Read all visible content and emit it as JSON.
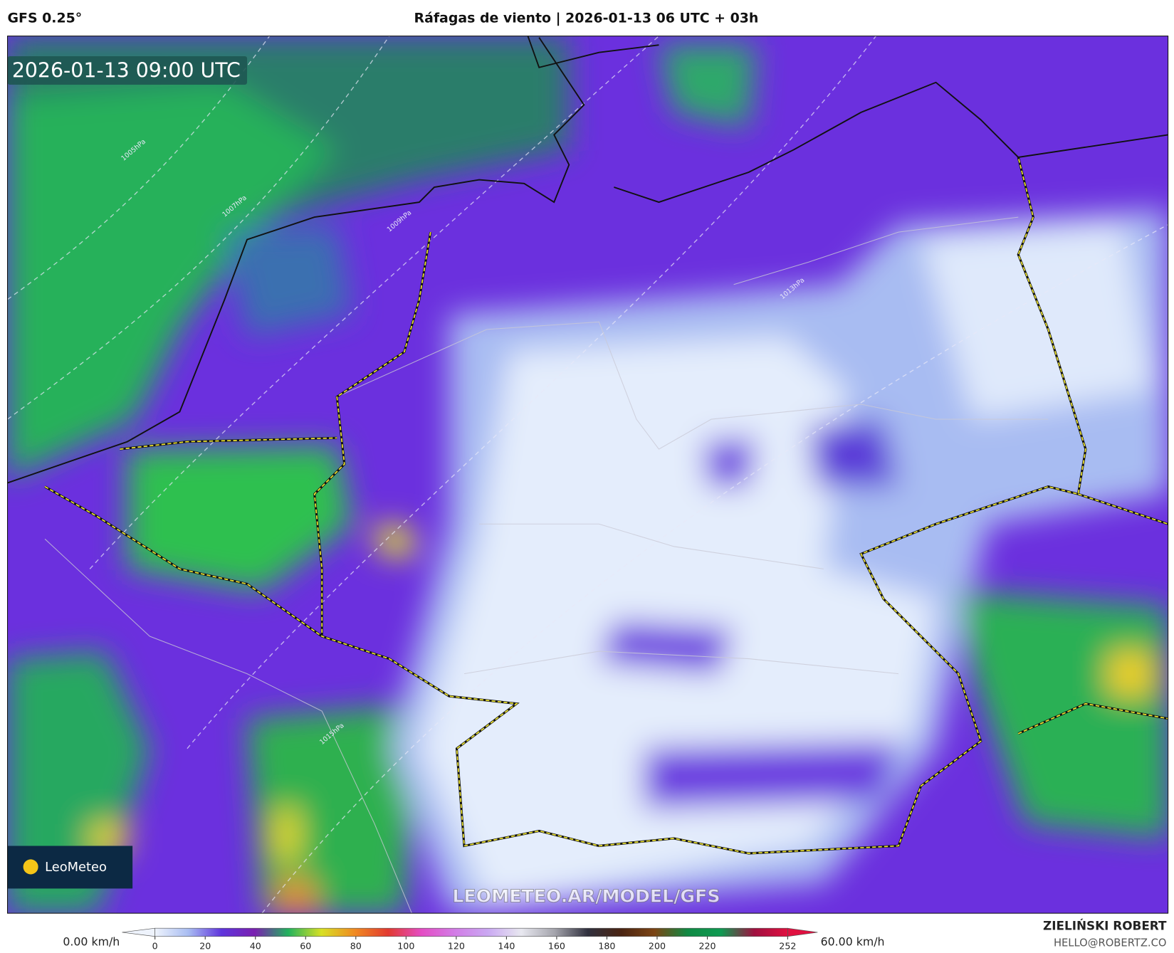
{
  "header": {
    "model": "GFS 0.25°",
    "title": "Ráfagas de viento | 2026-01-13 06 UTC + 03h"
  },
  "map": {
    "valid_time": "2026-01-13 09:00 UTC",
    "watermark": "LEOMETEO.AR/MODEL/GFS",
    "logo": "LeoMeteo",
    "isobars": [
      "1005hPa",
      "1007hPa",
      "1009hPa",
      "1013hPa",
      "1015hPa"
    ]
  },
  "colorbar": {
    "min_label": "0.00 km/h",
    "max_label": "60.00 km/h",
    "range": [
      0,
      252
    ],
    "ticks": [
      0,
      20,
      40,
      60,
      80,
      100,
      120,
      140,
      160,
      180,
      200,
      220,
      252
    ],
    "colors": [
      "#eef3fc",
      "#a9bdf2",
      "#5f34dc",
      "#7a20b0",
      "#22b25e",
      "#d8e024",
      "#f08a22",
      "#e23a30",
      "#e44cc4",
      "#d27ce6",
      "#caa8f2",
      "#e8e8f0",
      "#a4a4ac",
      "#30303e",
      "#4a2412",
      "#7c4414",
      "#108a44",
      "#0f9a52",
      "#a01040",
      "#e01040"
    ]
  },
  "credit": {
    "name": "ZIELIŃSKI ROBERT",
    "email": "HELLO@ROBERTZ.CO"
  }
}
